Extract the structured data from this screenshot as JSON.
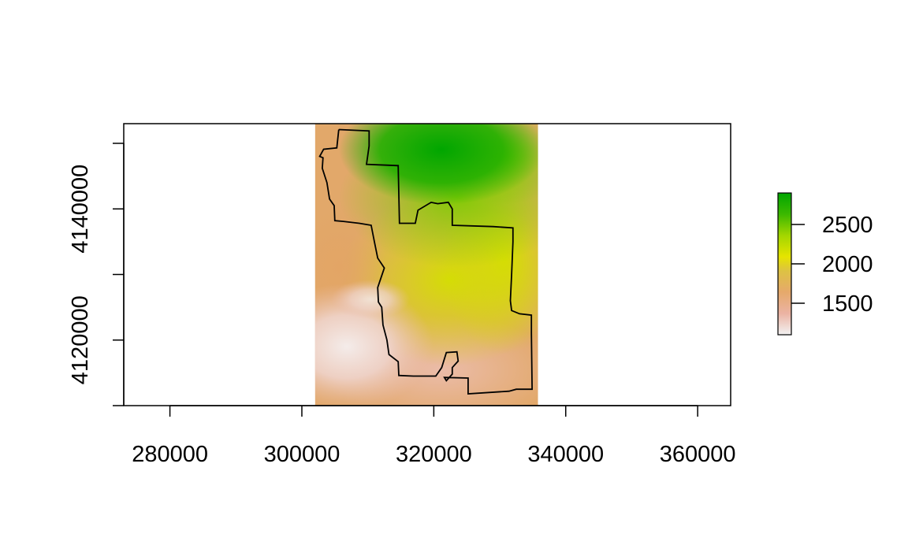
{
  "chart_data": {
    "type": "heatmap",
    "title": "",
    "xlabel": "",
    "ylabel": "",
    "xlim": [
      273000,
      365000
    ],
    "ylim": [
      4110000,
      4153000
    ],
    "x_ticks": [
      280000,
      300000,
      320000,
      340000,
      360000
    ],
    "y_ticks": [
      4120000,
      4140000
    ],
    "x_tick_labels": [
      "280000",
      "300000",
      "320000",
      "340000",
      "360000"
    ],
    "y_tick_labels": [
      "4120000",
      "4140000"
    ],
    "raster_extent": {
      "xmin": 302000,
      "xmax": 335800,
      "ymin": 4110000,
      "ymax": 4153000
    },
    "legend": {
      "placement": "right",
      "range": [
        1100,
        2900
      ],
      "ticks": [
        1500,
        2000,
        2500
      ],
      "tick_labels": [
        "1500",
        "2000",
        "2500"
      ],
      "colors": [
        "#f2f2f2",
        "#ebb3a3",
        "#e6a96b",
        "#ddc243",
        "#e6e400",
        "#a3d600",
        "#3cb800",
        "#00a600"
      ]
    },
    "boundary": [
      [
        305600,
        4152100
      ],
      [
        310200,
        4151900
      ],
      [
        310200,
        4149600
      ],
      [
        309800,
        4146800
      ],
      [
        314600,
        4146600
      ],
      [
        314800,
        4137800
      ],
      [
        317200,
        4137800
      ],
      [
        317600,
        4139800
      ],
      [
        319600,
        4141000
      ],
      [
        320600,
        4140800
      ],
      [
        322200,
        4141000
      ],
      [
        322800,
        4140000
      ],
      [
        322800,
        4137500
      ],
      [
        329000,
        4137300
      ],
      [
        332000,
        4137100
      ],
      [
        332000,
        4135000
      ],
      [
        331800,
        4130000
      ],
      [
        331600,
        4126000
      ],
      [
        331800,
        4124500
      ],
      [
        333000,
        4124000
      ],
      [
        334800,
        4123800
      ],
      [
        334800,
        4121000
      ],
      [
        334900,
        4112500
      ],
      [
        332500,
        4112500
      ],
      [
        331400,
        4112200
      ],
      [
        325200,
        4111800
      ],
      [
        325200,
        4114200
      ],
      [
        321600,
        4114300
      ],
      [
        321900,
        4113800
      ],
      [
        322800,
        4114800
      ],
      [
        322800,
        4115800
      ],
      [
        323700,
        4116800
      ],
      [
        323500,
        4118200
      ],
      [
        321900,
        4118100
      ],
      [
        321200,
        4115800
      ],
      [
        320300,
        4114500
      ],
      [
        316900,
        4114500
      ],
      [
        314700,
        4114600
      ],
      [
        314600,
        4116700
      ],
      [
        313200,
        4117800
      ],
      [
        312900,
        4120000
      ],
      [
        312300,
        4122300
      ],
      [
        312100,
        4125000
      ],
      [
        311600,
        4125800
      ],
      [
        311500,
        4128000
      ],
      [
        312500,
        4131000
      ],
      [
        311500,
        4132500
      ],
      [
        311000,
        4135000
      ],
      [
        310500,
        4137500
      ],
      [
        308700,
        4137800
      ],
      [
        306300,
        4138100
      ],
      [
        305000,
        4138200
      ],
      [
        304900,
        4140500
      ],
      [
        304200,
        4141500
      ],
      [
        303800,
        4144000
      ],
      [
        303100,
        4146200
      ],
      [
        303200,
        4147800
      ],
      [
        302700,
        4148000
      ],
      [
        303300,
        4149100
      ],
      [
        305300,
        4149300
      ],
      [
        305600,
        4152100
      ]
    ]
  }
}
